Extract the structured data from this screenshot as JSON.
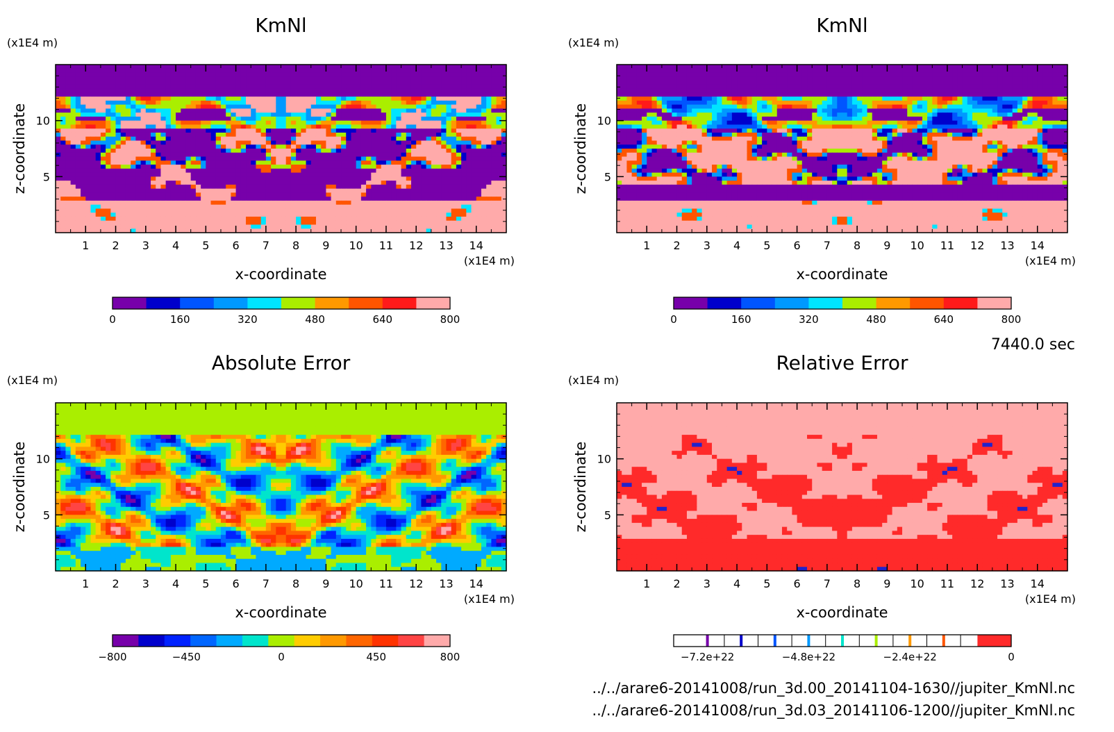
{
  "time_label": "7440.0 sec",
  "file_paths": [
    "../../arare6-20141008/run_3d.00_20141104-1630//jupiter_KmNl.nc",
    "../../arare6-20141008/run_3d.03_20141106-1200//jupiter_KmNl.nc"
  ],
  "chart_data": [
    {
      "type": "heatmap",
      "title": "KmNl",
      "xlabel": "x-coordinate",
      "ylabel": "z-coordinate",
      "x_unit": "(x1E4 m)",
      "y_unit": "(x1E4 m)",
      "xlim": [
        0,
        15
      ],
      "ylim": [
        0,
        15
      ],
      "x_ticks": [
        "1",
        "2",
        "3",
        "4",
        "5",
        "6",
        "7",
        "8",
        "9",
        "10",
        "11",
        "12",
        "13",
        "14"
      ],
      "y_ticks": [
        "5",
        "10"
      ],
      "colorbar": {
        "min": 0,
        "max": 800,
        "labels": [
          "0",
          "160",
          "320",
          "480",
          "640",
          "800"
        ],
        "colors": [
          "#7700aa",
          "#0000cc",
          "#0055ff",
          "#0099ff",
          "#00e5ff",
          "#aaee00",
          "#ff9900",
          "#ff5500",
          "#ff1a1a",
          "#ffaaaa"
        ]
      }
    },
    {
      "type": "heatmap",
      "title": "KmNl",
      "xlabel": "x-coordinate",
      "ylabel": "z-coordinate",
      "x_unit": "(x1E4 m)",
      "y_unit": "(x1E4 m)",
      "xlim": [
        0,
        15
      ],
      "ylim": [
        0,
        15
      ],
      "x_ticks": [
        "1",
        "2",
        "3",
        "4",
        "5",
        "6",
        "7",
        "8",
        "9",
        "10",
        "11",
        "12",
        "13",
        "14"
      ],
      "y_ticks": [
        "5",
        "10"
      ],
      "colorbar": {
        "min": 0,
        "max": 800,
        "labels": [
          "0",
          "160",
          "320",
          "480",
          "640",
          "800"
        ],
        "colors": [
          "#7700aa",
          "#0000cc",
          "#0055ff",
          "#0099ff",
          "#00e5ff",
          "#aaee00",
          "#ff9900",
          "#ff5500",
          "#ff1a1a",
          "#ffaaaa"
        ]
      }
    },
    {
      "type": "heatmap",
      "title": "Absolute Error",
      "xlabel": "x-coordinate",
      "ylabel": "z-coordinate",
      "x_unit": "(x1E4 m)",
      "y_unit": "(x1E4 m)",
      "xlim": [
        0,
        15
      ],
      "ylim": [
        0,
        15
      ],
      "x_ticks": [
        "1",
        "2",
        "3",
        "4",
        "5",
        "6",
        "7",
        "8",
        "9",
        "10",
        "11",
        "12",
        "13",
        "14"
      ],
      "y_ticks": [
        "5",
        "10"
      ],
      "colorbar": {
        "min": -800,
        "max": 800,
        "labels": [
          "-800",
          "-450",
          "0",
          "450",
          "800"
        ],
        "colors": [
          "#7700aa",
          "#0000cc",
          "#0022ff",
          "#0066ff",
          "#00aaff",
          "#00e5cc",
          "#aaee00",
          "#ffcc00",
          "#ff9900",
          "#ff6600",
          "#ff3300",
          "#ff4444",
          "#ffaaaa"
        ]
      }
    },
    {
      "type": "heatmap",
      "title": "Relative Error",
      "xlabel": "x-coordinate",
      "ylabel": "z-coordinate",
      "x_unit": "(x1E4 m)",
      "y_unit": "(x1E4 m)",
      "xlim": [
        0,
        15
      ],
      "ylim": [
        0,
        15
      ],
      "x_ticks": [
        "1",
        "2",
        "3",
        "4",
        "5",
        "6",
        "7",
        "8",
        "9",
        "10",
        "11",
        "12",
        "13",
        "14"
      ],
      "y_ticks": [
        "5",
        "10"
      ],
      "colorbar": {
        "min": -8e+22,
        "max": 0,
        "labels": [
          "-7.2e+22",
          "-4.8e+22",
          "-2.4e+22",
          "0"
        ],
        "colors": [
          "#ffffff",
          "#ff2a2a"
        ],
        "tick_marks": [
          "#7700aa",
          "#0000cc",
          "#0055ff",
          "#0099ff",
          "#00e5cc",
          "#aaee00",
          "#ff9900",
          "#ff5500"
        ]
      }
    }
  ]
}
